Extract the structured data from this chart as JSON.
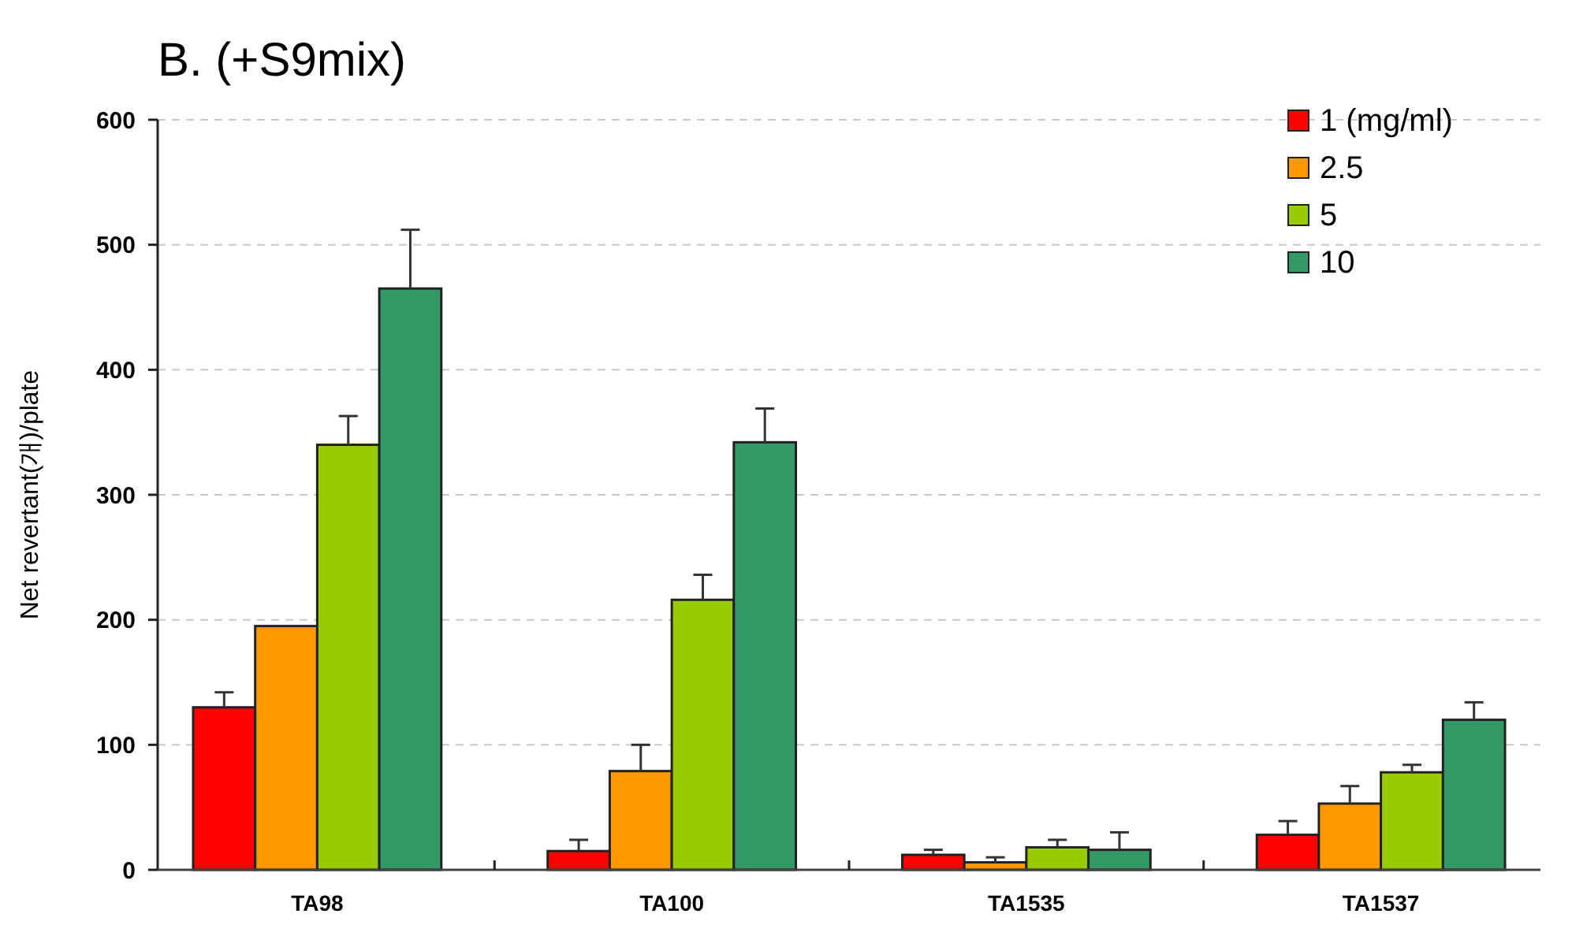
{
  "chart_data": {
    "type": "bar",
    "title": "B.    (+S9mix)",
    "ylabel": "Net revertant(개)/plate",
    "categories": [
      "TA98",
      "TA100",
      "TA1535",
      "TA1537"
    ],
    "series": [
      {
        "name": "1  (mg/ml)",
        "color": "#ff0000",
        "values": [
          130,
          15,
          12,
          28
        ],
        "errors": [
          12,
          9,
          4,
          11
        ]
      },
      {
        "name": "2.5",
        "color": "#ff9900",
        "values": [
          195,
          79,
          6,
          53
        ],
        "errors": [
          null,
          21,
          4,
          14
        ]
      },
      {
        "name": "5",
        "color": "#99cc00",
        "values": [
          340,
          216,
          18,
          78
        ],
        "errors": [
          23,
          20,
          6,
          6
        ]
      },
      {
        "name": "10",
        "color": "#339966",
        "values": [
          465,
          342,
          16,
          120
        ],
        "errors": [
          47,
          27,
          14,
          14
        ]
      }
    ],
    "ylim": [
      0,
      600
    ],
    "yticks": [
      0,
      100,
      200,
      300,
      400,
      500,
      600
    ],
    "grid": "y",
    "legend": "top right"
  }
}
